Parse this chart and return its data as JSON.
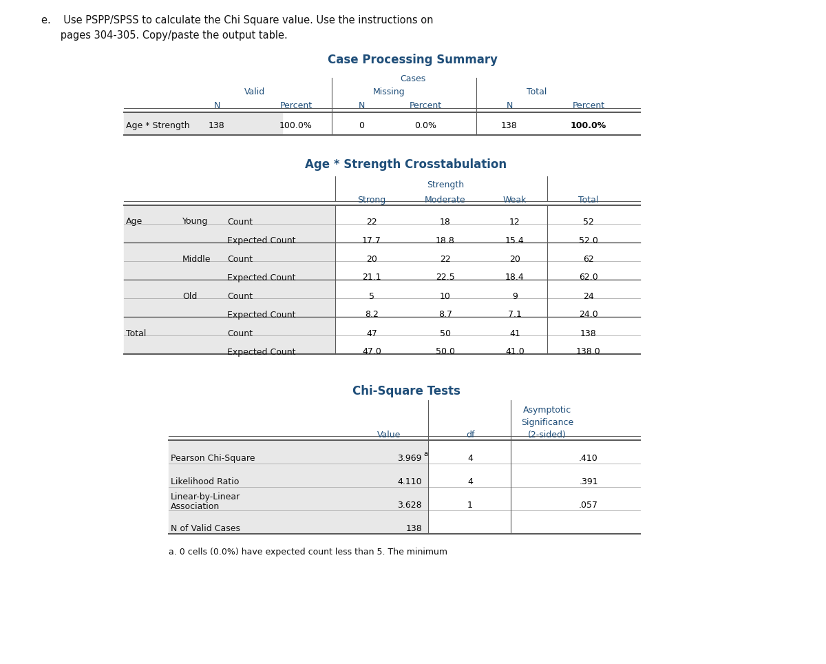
{
  "header_line1": "e.    Use PSPP/SPSS to calculate the Chi Square value. Use the instructions on",
  "header_line2": "      pages 304-305. Copy/paste the output table.",
  "cps_title": "Case Processing Summary",
  "cross_title": "Age * Strength Crosstabulation",
  "chi_title": "Chi-Square Tests",
  "label_color": "#1f4e79",
  "header_color": "#1f4e79",
  "bg_color": "#ffffff",
  "shade_color": "#e8e8e8",
  "dark_line": "#5a5a5a",
  "light_line": "#aaaaaa",
  "text_color": "#000000",
  "cps_row_label": "Age * Strength",
  "cps_data": [
    "138",
    "100.0%",
    "0",
    "0.0%",
    "138",
    "100.0%"
  ],
  "cross_rows": [
    [
      "Age",
      "Young",
      "Count",
      "22",
      "18",
      "12",
      "52"
    ],
    [
      "",
      "",
      "Expected Count",
      "17.7",
      "18.8",
      "15.4",
      "52.0"
    ],
    [
      "",
      "Middle",
      "Count",
      "20",
      "22",
      "20",
      "62"
    ],
    [
      "",
      "",
      "Expected Count",
      "21.1",
      "22.5",
      "18.4",
      "62.0"
    ],
    [
      "",
      "Old",
      "Count",
      "5",
      "10",
      "9",
      "24"
    ],
    [
      "",
      "",
      "Expected Count",
      "8.2",
      "8.7",
      "7.1",
      "24.0"
    ],
    [
      "Total",
      "",
      "Count",
      "47",
      "50",
      "41",
      "138"
    ],
    [
      "",
      "",
      "Expected Count",
      "47.0",
      "50.0",
      "41.0",
      "138.0"
    ]
  ],
  "chi_rows": [
    [
      "Pearson Chi-Square",
      "3.969",
      "a",
      "4",
      ".410"
    ],
    [
      "Likelihood Ratio",
      "4.110",
      "",
      "4",
      ".391"
    ],
    [
      "Linear-by-Linear\nAssociation",
      "3.628",
      "",
      "1",
      ".057"
    ],
    [
      "N of Valid Cases",
      "138",
      "",
      "",
      ""
    ]
  ],
  "chi_footnote": "a. 0 cells (0.0%) have expected count less than 5. The minimum"
}
